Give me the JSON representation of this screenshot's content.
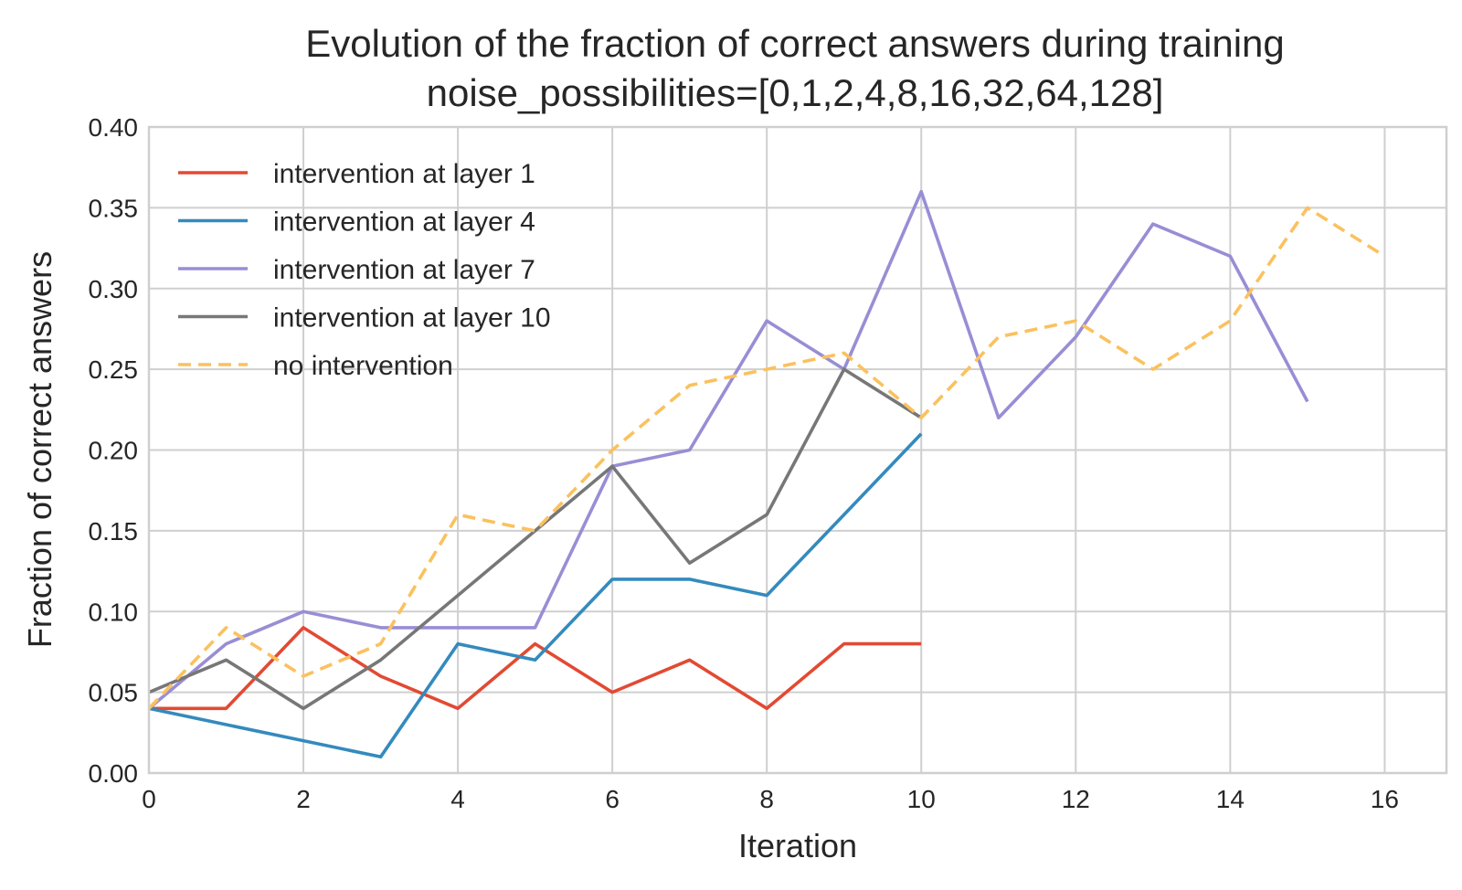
{
  "chart_data": {
    "type": "line",
    "title": "Evolution of the fraction of correct answers during training",
    "subtitle": "noise_possibilities=[0,1,2,4,8,16,32,64,128]",
    "xlabel": "Iteration",
    "ylabel": "Fraction of correct answers",
    "xlim": [
      0,
      16.8
    ],
    "ylim": [
      0,
      0.4
    ],
    "x_ticks": [
      0,
      2,
      4,
      6,
      8,
      10,
      12,
      14,
      16
    ],
    "y_ticks": [
      0.0,
      0.05,
      0.1,
      0.15,
      0.2,
      0.25,
      0.3,
      0.35,
      0.4
    ],
    "x_tick_labels": [
      "0",
      "2",
      "4",
      "6",
      "8",
      "10",
      "12",
      "14",
      "16"
    ],
    "y_tick_labels": [
      "0.00",
      "0.05",
      "0.10",
      "0.15",
      "0.20",
      "0.25",
      "0.30",
      "0.35",
      "0.40"
    ],
    "grid": true,
    "legend_position": "top-left",
    "series": [
      {
        "name": "intervention at layer 1",
        "color": "#e24a33",
        "dashed": false,
        "x": [
          0,
          1,
          2,
          3,
          4,
          5,
          6,
          7,
          8,
          9,
          10
        ],
        "values": [
          0.04,
          0.04,
          0.09,
          0.06,
          0.04,
          0.08,
          0.05,
          0.07,
          0.04,
          0.08,
          0.08
        ]
      },
      {
        "name": "intervention at layer 4",
        "color": "#348abd",
        "dashed": false,
        "x": [
          0,
          1,
          2,
          3,
          4,
          5,
          6,
          7,
          8,
          9,
          10
        ],
        "values": [
          0.04,
          0.03,
          0.02,
          0.01,
          0.08,
          0.07,
          0.12,
          0.12,
          0.11,
          0.16,
          0.21
        ]
      },
      {
        "name": "intervention at layer 7",
        "color": "#988ed5",
        "dashed": false,
        "x": [
          0,
          1,
          2,
          3,
          4,
          5,
          6,
          7,
          8,
          9,
          10,
          11,
          12,
          13,
          14,
          15
        ],
        "values": [
          0.04,
          0.08,
          0.1,
          0.09,
          0.09,
          0.09,
          0.19,
          0.2,
          0.28,
          0.25,
          0.36,
          0.22,
          0.27,
          0.34,
          0.32,
          0.23
        ]
      },
      {
        "name": "intervention at layer 10",
        "color": "#777777",
        "dashed": false,
        "x": [
          0,
          1,
          2,
          3,
          4,
          5,
          6,
          7,
          8,
          9,
          10
        ],
        "values": [
          0.05,
          0.07,
          0.04,
          0.07,
          0.11,
          0.15,
          0.19,
          0.13,
          0.16,
          0.25,
          0.22
        ]
      },
      {
        "name": "no intervention",
        "color": "#fbc15e",
        "dashed": true,
        "x": [
          0,
          1,
          2,
          3,
          4,
          5,
          6,
          7,
          8,
          9,
          10,
          11,
          12,
          13,
          14,
          15,
          16
        ],
        "values": [
          0.04,
          0.09,
          0.06,
          0.08,
          0.16,
          0.15,
          0.2,
          0.24,
          0.25,
          0.26,
          0.22,
          0.27,
          0.28,
          0.25,
          0.28,
          0.35,
          0.32
        ]
      }
    ]
  }
}
